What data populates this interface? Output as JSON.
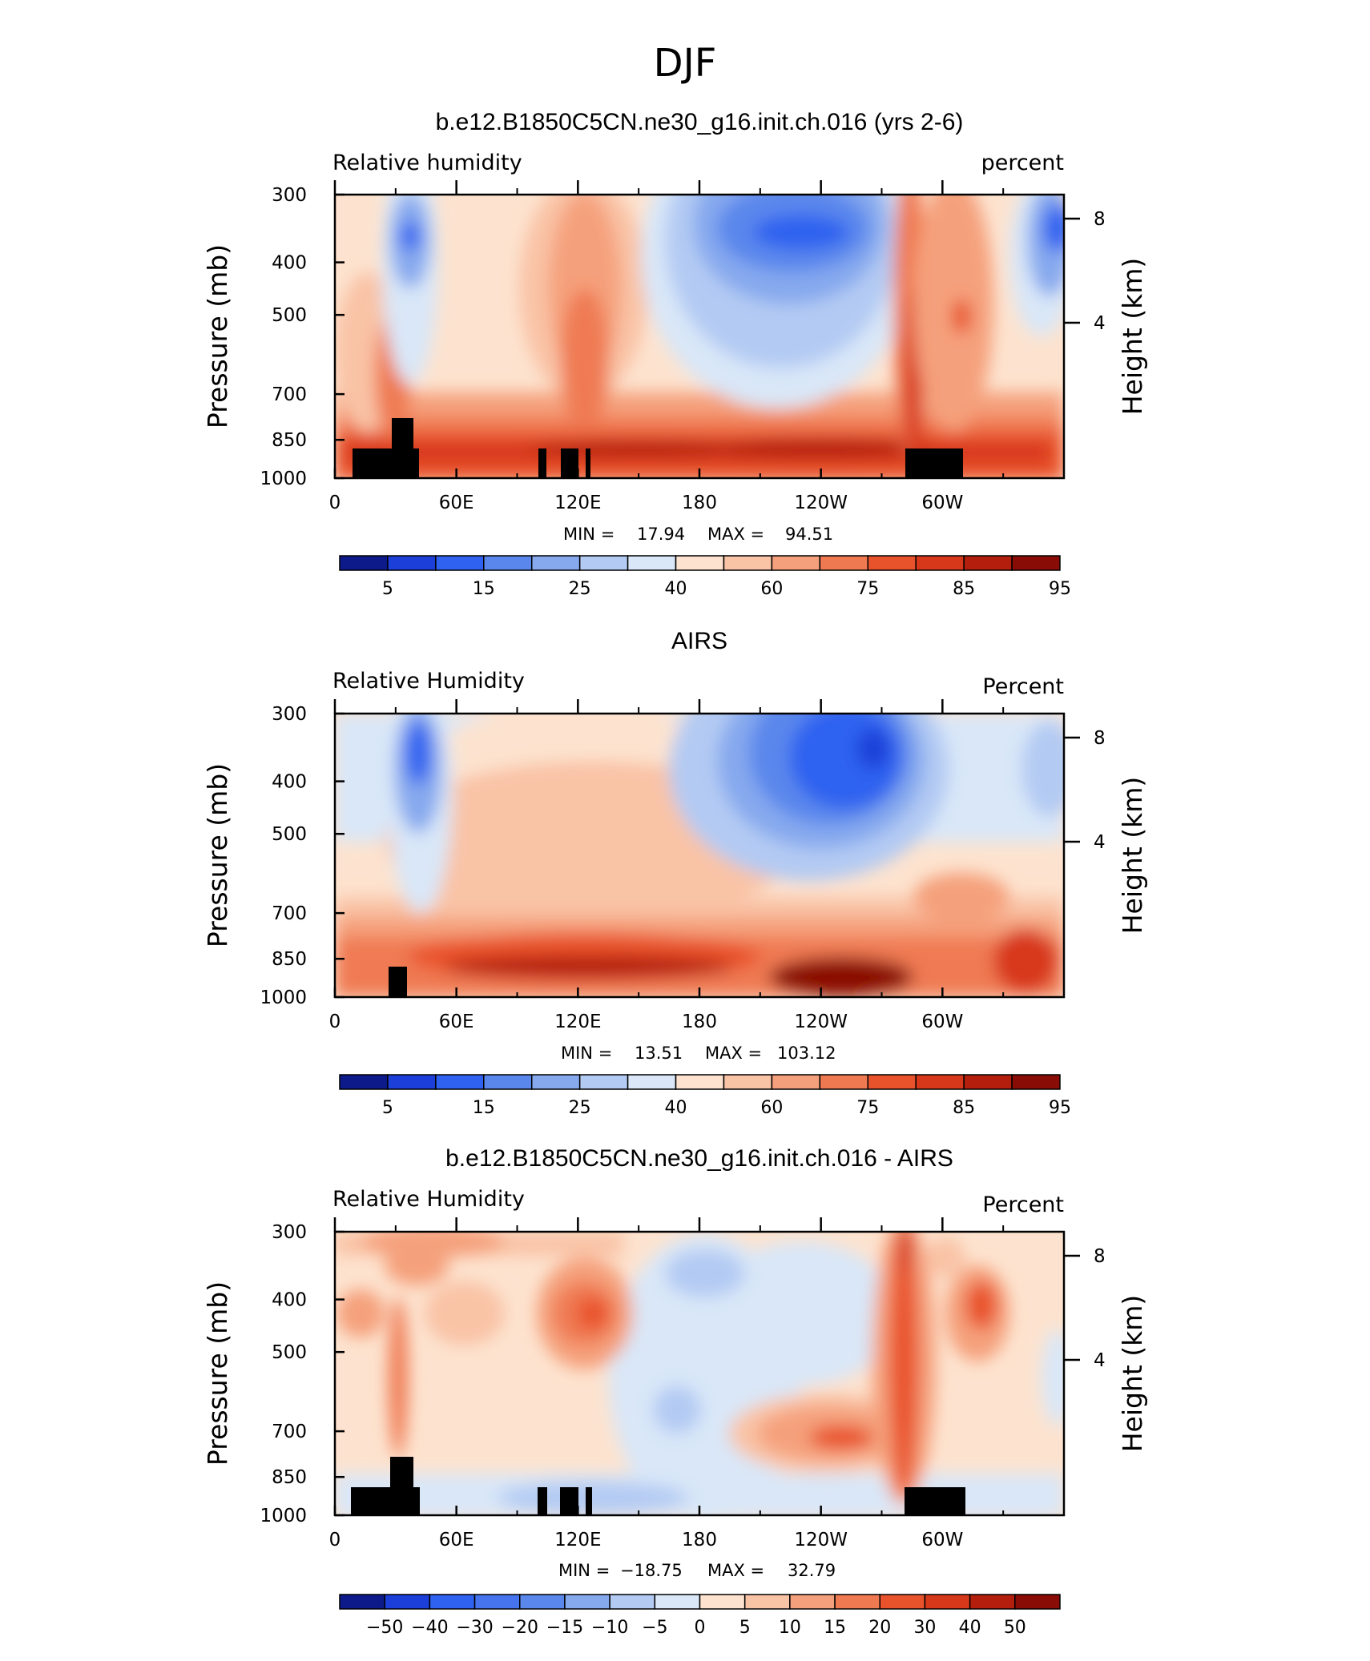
{
  "page_title": "DJF",
  "chart_data": [
    {
      "type": "heatmap",
      "title": "b.e12.B1850C5CN.ne30_g16.init.ch.016 (yrs 2-6)",
      "left_label": "Relative humidity",
      "right_label": "percent",
      "ylabel": "Pressure (mb)",
      "y2label": "Height (km)",
      "x_ticks": [
        "0",
        "60E",
        "120E",
        "180",
        "120W",
        "60W"
      ],
      "x_tick_positions_deg": [
        0,
        60,
        120,
        180,
        240,
        300
      ],
      "xlim": [
        0,
        360
      ],
      "y_ticks": [
        "300",
        "400",
        "500",
        "700",
        "850",
        "1000"
      ],
      "y_tick_values_mb": [
        300,
        400,
        500,
        700,
        850,
        1000
      ],
      "ylim": [
        1000,
        300
      ],
      "y2_ticks": [
        "8",
        "4"
      ],
      "stats": {
        "min_label": "MIN =",
        "min": "17.94",
        "max_label": "MAX =",
        "max": "94.51"
      },
      "colorbar_labels": [
        "5",
        "15",
        "25",
        "40",
        "60",
        "75",
        "85",
        "95"
      ],
      "colorbar_colors": [
        "#0d1a8a",
        "#1b3fd8",
        "#2f62f0",
        "#5a87ec",
        "#86a9ee",
        "#b3caf3",
        "#d9e7f8",
        "#fde3cf",
        "#f9c3a6",
        "#f5a07c",
        "#ef7a52",
        "#e9532c",
        "#d8381a",
        "#b31f0c",
        "#8a0c06"
      ]
    },
    {
      "type": "heatmap",
      "title": "AIRS",
      "left_label": "Relative Humidity",
      "right_label": "Percent",
      "ylabel": "Pressure (mb)",
      "y2label": "Height (km)",
      "x_ticks": [
        "0",
        "60E",
        "120E",
        "180",
        "120W",
        "60W"
      ],
      "x_tick_positions_deg": [
        0,
        60,
        120,
        180,
        240,
        300
      ],
      "xlim": [
        0,
        360
      ],
      "y_ticks": [
        "300",
        "400",
        "500",
        "700",
        "850",
        "1000"
      ],
      "y_tick_values_mb": [
        300,
        400,
        500,
        700,
        850,
        1000
      ],
      "ylim": [
        1000,
        300
      ],
      "y2_ticks": [
        "8",
        "4"
      ],
      "stats": {
        "min_label": "MIN =",
        "min": "13.51",
        "max_label": "MAX =",
        "max": "103.12"
      },
      "colorbar_labels": [
        "5",
        "15",
        "25",
        "40",
        "60",
        "75",
        "85",
        "95"
      ],
      "colorbar_colors": [
        "#0d1a8a",
        "#1b3fd8",
        "#2f62f0",
        "#5a87ec",
        "#86a9ee",
        "#b3caf3",
        "#d9e7f8",
        "#fde3cf",
        "#f9c3a6",
        "#f5a07c",
        "#ef7a52",
        "#e9532c",
        "#d8381a",
        "#b31f0c",
        "#8a0c06"
      ]
    },
    {
      "type": "heatmap",
      "title": "b.e12.B1850C5CN.ne30_g16.init.ch.016 - AIRS",
      "left_label": "Relative Humidity",
      "right_label": "Percent",
      "ylabel": "Pressure (mb)",
      "y2label": "Height (km)",
      "x_ticks": [
        "0",
        "60E",
        "120E",
        "180",
        "120W",
        "60W"
      ],
      "x_tick_positions_deg": [
        0,
        60,
        120,
        180,
        240,
        300
      ],
      "xlim": [
        0,
        360
      ],
      "y_ticks": [
        "300",
        "400",
        "500",
        "700",
        "850",
        "1000"
      ],
      "y_tick_values_mb": [
        300,
        400,
        500,
        700,
        850,
        1000
      ],
      "ylim": [
        1000,
        300
      ],
      "y2_ticks": [
        "8",
        "4"
      ],
      "stats": {
        "min_label": "MIN =",
        "min": "−18.75",
        "max_label": "MAX =",
        "max": "32.79"
      },
      "colorbar_labels": [
        "−50",
        "−40",
        "−30",
        "−20",
        "−15",
        "−10",
        "−5",
        "0",
        "5",
        "10",
        "15",
        "20",
        "30",
        "40",
        "50"
      ],
      "colorbar_colors": [
        "#0d1a8a",
        "#1b3fd8",
        "#2f62f0",
        "#4574ee",
        "#5a87ec",
        "#86a9ee",
        "#b3caf3",
        "#d9e7f8",
        "#fde3cf",
        "#f9c3a6",
        "#f5a07c",
        "#ef7a52",
        "#e9532c",
        "#d8381a",
        "#b31f0c",
        "#8a0c06"
      ]
    }
  ]
}
